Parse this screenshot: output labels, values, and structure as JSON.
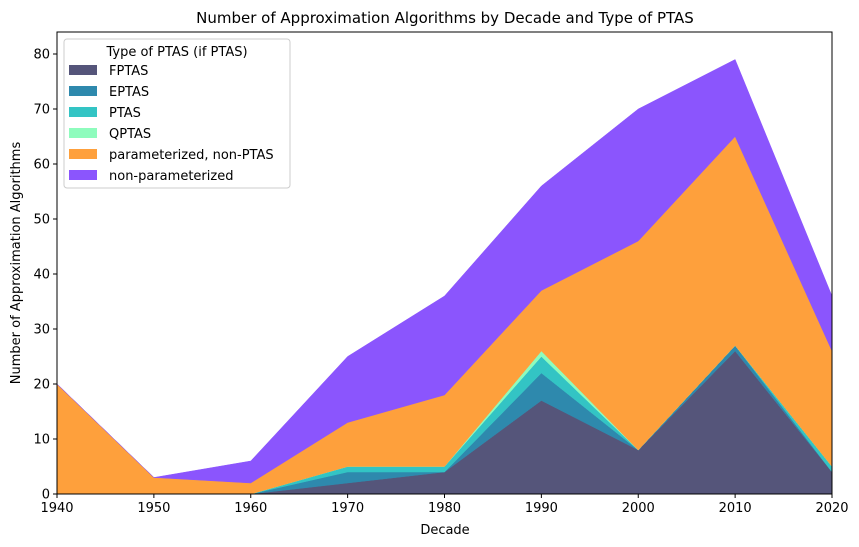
{
  "chart_data": {
    "type": "area",
    "stacked": true,
    "title": "Number of Approximation Algorithms by Decade and Type of PTAS",
    "xlabel": "Decade",
    "ylabel": "Number of Approximation Algorithms",
    "x": [
      1940,
      1950,
      1960,
      1970,
      1980,
      1990,
      2000,
      2010,
      2020
    ],
    "xlim": [
      1940,
      2020
    ],
    "ylim": [
      0,
      84
    ],
    "xticks": [
      "1940",
      "1950",
      "1960",
      "1970",
      "1980",
      "1990",
      "2000",
      "2010",
      "2020"
    ],
    "yticks": [
      "0",
      "10",
      "20",
      "30",
      "40",
      "50",
      "60",
      "70",
      "80"
    ],
    "grid": false,
    "legend_title": "Type of PTAS (if PTAS)",
    "legend_position": "upper-left",
    "series": [
      {
        "name": "FPTAS",
        "color": "#55557a",
        "values": [
          0,
          0,
          0,
          2,
          4,
          17,
          8,
          26,
          4
        ]
      },
      {
        "name": "EPTAS",
        "color": "#2e89ad",
        "values": [
          0,
          0,
          0,
          2,
          0,
          5,
          0,
          1,
          0
        ]
      },
      {
        "name": "PTAS",
        "color": "#33c4c4",
        "values": [
          0,
          0,
          0,
          1,
          1,
          3,
          0,
          0,
          1
        ]
      },
      {
        "name": "QPTAS",
        "color": "#8efcbd",
        "values": [
          0,
          0,
          0,
          0,
          0,
          1,
          0,
          0,
          0
        ]
      },
      {
        "name": "parameterized, non-PTAS",
        "color": "#fea03c",
        "values": [
          20,
          3,
          2,
          8,
          13,
          11,
          38,
          38,
          21
        ]
      },
      {
        "name": "non-parameterized",
        "color": "#8b55fd",
        "values": [
          0,
          0,
          4,
          12,
          18,
          19,
          24,
          14,
          10
        ]
      }
    ]
  }
}
